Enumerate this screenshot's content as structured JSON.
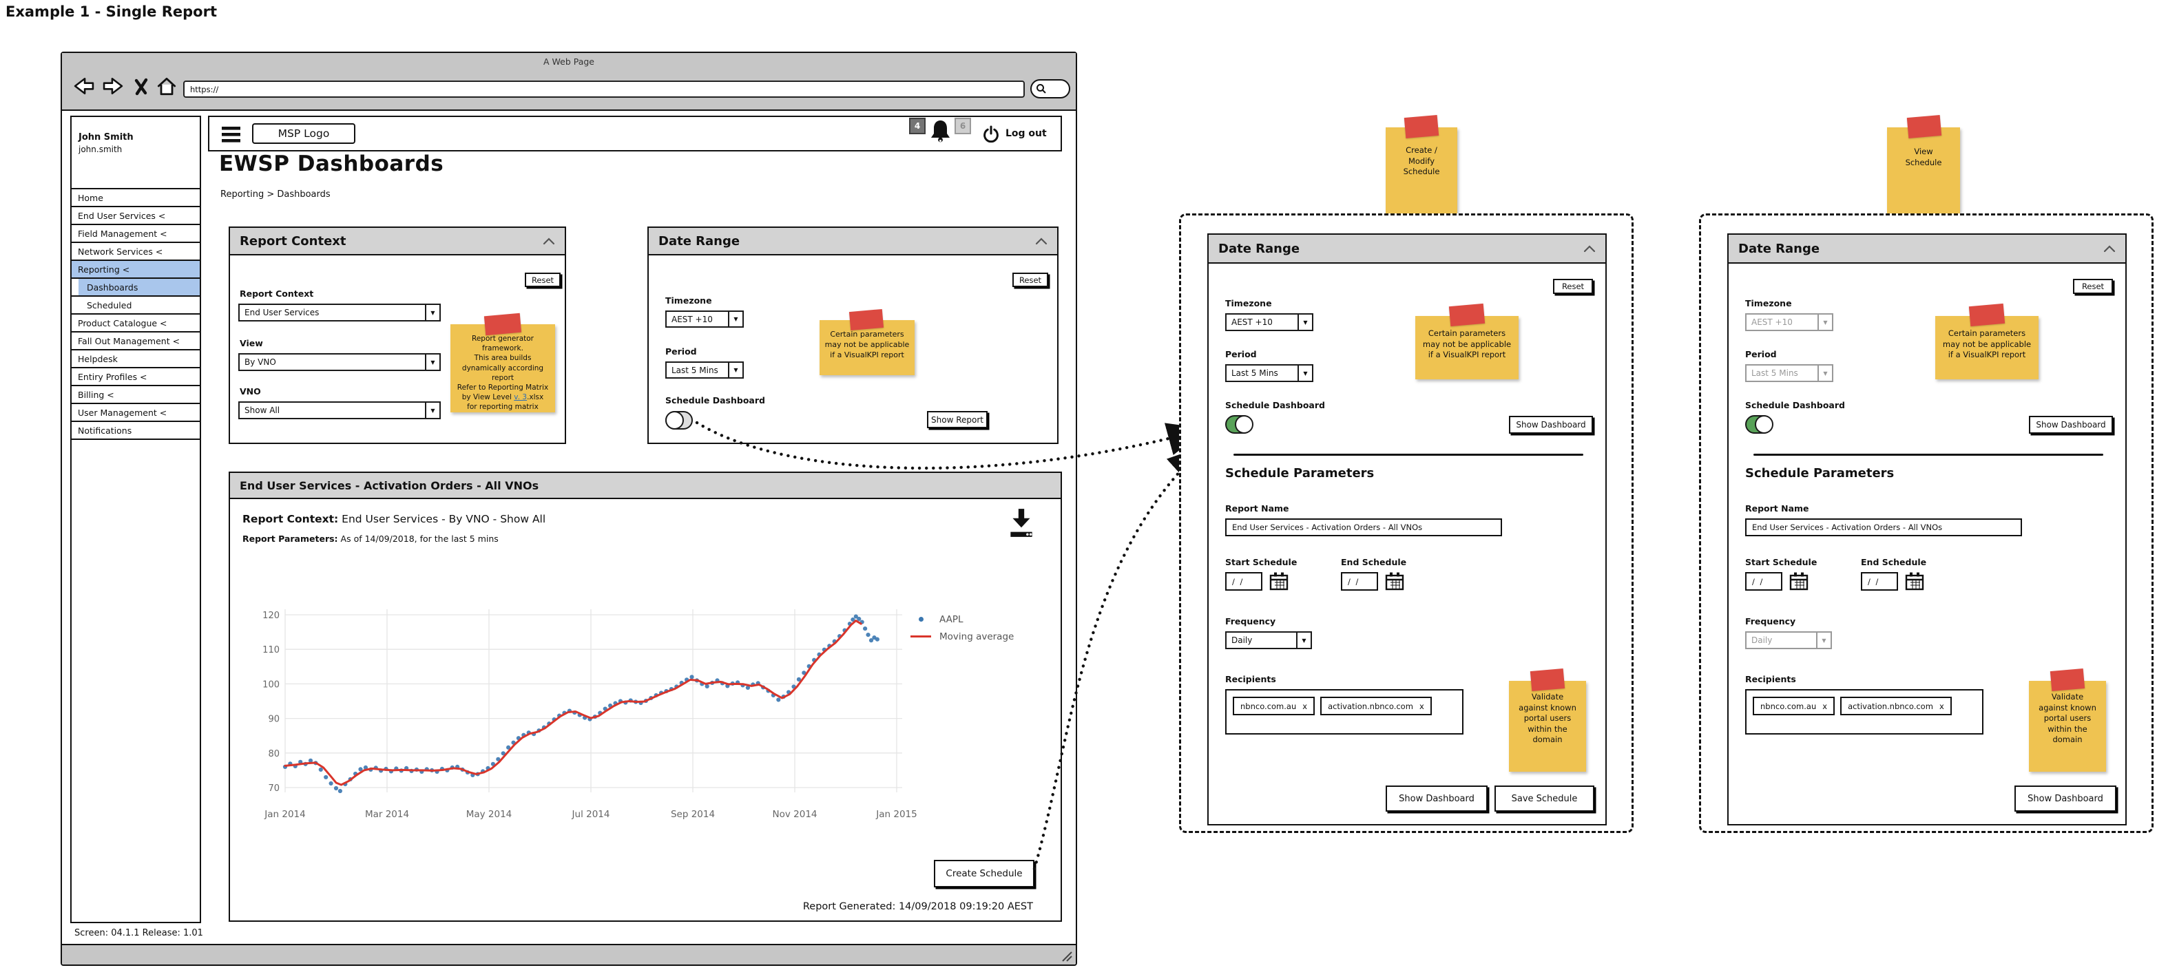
{
  "example_label": "Example 1 - Single Report",
  "browser": {
    "window_title": "A Web Page",
    "url": "https://"
  },
  "app": {
    "logo": "MSP Logo",
    "badge_dark": "4",
    "badge_light": "6",
    "logout_label": "Log out",
    "user_name": "John Smith",
    "user_handle": "john.smith",
    "page_title": "EWSP Dashboards",
    "breadcrumb": "Reporting > Dashboards",
    "screen_info": "Screen: 04.1.1  Release: 1.01"
  },
  "sidebar": {
    "items": [
      {
        "label": "Home"
      },
      {
        "label": "End User Services <"
      },
      {
        "label": "Field Management <"
      },
      {
        "label": "Network Services <"
      },
      {
        "label": "Reporting <"
      },
      {
        "label": "Dashboards"
      },
      {
        "label": "Scheduled"
      },
      {
        "label": "Product Catalogue <"
      },
      {
        "label": "Fall Out Management <"
      },
      {
        "label": "Helpdesk"
      },
      {
        "label": "Entiry Profiles <"
      },
      {
        "label": "Billing <"
      },
      {
        "label": "User Management <"
      },
      {
        "label": "Notifications"
      }
    ]
  },
  "report_context_panel": {
    "title": "Report Context",
    "reset_label": "Reset",
    "context_label": "Report Context",
    "context_value": "End User Services",
    "view_label": "View",
    "view_value": "By VNO",
    "vno_label": "VNO",
    "vno_value": "Show All",
    "note_pre": "Report generator\nframework.\nThis area builds\ndynamically according\nreport\nRefer to Reporting Matrix\nby View Level ",
    "note_link": "v. 3",
    "note_post": ".xlsx\nfor reporting matrix"
  },
  "date_range_panel": {
    "title": "Date Range",
    "reset_label": "Reset",
    "timezone_label": "Timezone",
    "timezone_value": "AEST +10",
    "period_label": "Period",
    "period_value": "Last 5 Mins",
    "schedule_label": "Schedule Dashboard",
    "toggle_on": false,
    "show_report_label": "Show Report",
    "note": "Certain parameters\nmay not be applicable\nif a VisualKPI report"
  },
  "report_panel": {
    "title": "End User Services - Activation Orders - All VNOs",
    "context_label": "Report Context:",
    "context_value": "End User Services - By VNO - Show All",
    "params_label": "Report Parameters:",
    "params_value": "As of 14/09/2018, for the last 5 mins",
    "create_schedule_label": "Create Schedule",
    "generated": "Report Generated: 14/09/2018 09:19:20 AEST"
  },
  "schedule_panels": [
    {
      "sticky_note": "Create /\nModify\nSchedule",
      "date_range": {
        "title": "Date Range",
        "reset_label": "Reset",
        "timezone_label": "Timezone",
        "timezone_value": "AEST +10",
        "timezone_disabled": false,
        "period_label": "Period",
        "period_value": "Last 5 Mins",
        "period_disabled": false,
        "schedule_label": "Schedule Dashboard",
        "toggle_on": true,
        "show_dashboard_label": "Show Dashboard",
        "note": "Certain parameters\nmay not be applicable\nif a VisualKPI report"
      },
      "params": {
        "heading": "Schedule Parameters",
        "report_name_label": "Report Name",
        "report_name_value": "End User Services - Activation Orders - All VNOs",
        "start_label": "Start Schedule",
        "end_label": "End Schedule",
        "date_value": "/ /",
        "frequency_label": "Frequency",
        "frequency_value": "Daily",
        "frequency_disabled": false,
        "recipients_label": "Recipients",
        "recipients": [
          {
            "text": "nbnco.com.au",
            "remove_label": "x"
          },
          {
            "text": "activation.nbnco.com",
            "remove_label": "x"
          }
        ],
        "note": "Validate\nagainst known\nportal users\nwithin the\ndomain",
        "show_dashboard_label": "Show Dashboard",
        "save_schedule_label": "Save Schedule"
      }
    },
    {
      "sticky_note": "View\nSchedule",
      "date_range": {
        "title": "Date Range",
        "reset_label": "Reset",
        "timezone_label": "Timezone",
        "timezone_value": "AEST +10",
        "timezone_disabled": true,
        "period_label": "Period",
        "period_value": "Last 5 Mins",
        "period_disabled": true,
        "schedule_label": "Schedule Dashboard",
        "toggle_on": true,
        "show_dashboard_label": "Show Dashboard",
        "note": "Certain parameters\nmay not be applicable\nif a VisualKPI report"
      },
      "params": {
        "heading": "Schedule Parameters",
        "report_name_label": "Report Name",
        "report_name_value": "End User Services - Activation Orders - All VNOs",
        "start_label": "Start Schedule",
        "end_label": "End Schedule",
        "date_value": "/ /",
        "frequency_label": "Frequency",
        "frequency_value": "Daily",
        "frequency_disabled": true,
        "recipients_label": "Recipients",
        "recipients": [
          {
            "text": "nbnco.com.au",
            "remove_label": "x"
          },
          {
            "text": "activation.nbnco.com",
            "remove_label": "x"
          }
        ],
        "note": "Validate\nagainst known\nportal users\nwithin the\ndomain",
        "show_dashboard_label": "Show Dashboard"
      }
    }
  ],
  "chart_data": {
    "type": "scatter",
    "title": "",
    "xlabel": "",
    "ylabel": "",
    "grid": true,
    "legend_position": "top-right",
    "x_axis": {
      "unit": "months since Jan 2014",
      "tick_positions": [
        0,
        2,
        4,
        6,
        8,
        10,
        12
      ],
      "tick_labels": [
        "Jan 2014",
        "Mar 2014",
        "May 2014",
        "Jul 2014",
        "Sep 2014",
        "Nov 2014",
        "Jan 2015"
      ]
    },
    "y_axis": {
      "ticks": [
        70,
        80,
        90,
        100,
        110,
        120
      ],
      "range": [
        66,
        124
      ]
    },
    "series": [
      {
        "name": "AAPL",
        "type": "scatter",
        "color": "#3a77b0",
        "points": [
          [
            0.0,
            76.0
          ],
          [
            0.1,
            76.9
          ],
          [
            0.2,
            76.2
          ],
          [
            0.3,
            77.4
          ],
          [
            0.4,
            76.8
          ],
          [
            0.5,
            77.8
          ],
          [
            0.6,
            77.1
          ],
          [
            0.7,
            75.2
          ],
          [
            0.8,
            73.0
          ],
          [
            0.9,
            71.2
          ],
          [
            1.0,
            69.8
          ],
          [
            1.08,
            69.0
          ],
          [
            1.18,
            71.0
          ],
          [
            1.28,
            72.4
          ],
          [
            1.38,
            74.0
          ],
          [
            1.48,
            75.3
          ],
          [
            1.58,
            75.8
          ],
          [
            1.68,
            75.2
          ],
          [
            1.78,
            75.7
          ],
          [
            1.88,
            74.9
          ],
          [
            1.98,
            75.4
          ],
          [
            2.08,
            74.7
          ],
          [
            2.18,
            75.5
          ],
          [
            2.28,
            74.9
          ],
          [
            2.38,
            75.6
          ],
          [
            2.48,
            74.8
          ],
          [
            2.58,
            75.2
          ],
          [
            2.68,
            74.6
          ],
          [
            2.78,
            75.3
          ],
          [
            2.88,
            75.0
          ],
          [
            2.98,
            74.6
          ],
          [
            3.08,
            75.4
          ],
          [
            3.18,
            75.0
          ],
          [
            3.28,
            75.8
          ],
          [
            3.38,
            76.0
          ],
          [
            3.48,
            75.2
          ],
          [
            3.58,
            74.4
          ],
          [
            3.68,
            73.6
          ],
          [
            3.78,
            73.9
          ],
          [
            3.88,
            74.7
          ],
          [
            3.98,
            75.6
          ],
          [
            4.08,
            76.8
          ],
          [
            4.18,
            78.2
          ],
          [
            4.28,
            79.9
          ],
          [
            4.38,
            81.6
          ],
          [
            4.48,
            83.0
          ],
          [
            4.58,
            84.3
          ],
          [
            4.68,
            85.2
          ],
          [
            4.78,
            85.9
          ],
          [
            4.88,
            85.5
          ],
          [
            4.98,
            86.5
          ],
          [
            5.08,
            87.4
          ],
          [
            5.18,
            88.5
          ],
          [
            5.28,
            89.7
          ],
          [
            5.38,
            90.8
          ],
          [
            5.48,
            91.6
          ],
          [
            5.58,
            92.2
          ],
          [
            5.68,
            91.7
          ],
          [
            5.78,
            91.0
          ],
          [
            5.88,
            90.2
          ],
          [
            5.98,
            89.8
          ],
          [
            6.08,
            90.5
          ],
          [
            6.18,
            91.6
          ],
          [
            6.28,
            92.8
          ],
          [
            6.38,
            93.7
          ],
          [
            6.48,
            94.4
          ],
          [
            6.58,
            95.0
          ],
          [
            6.68,
            94.6
          ],
          [
            6.78,
            95.2
          ],
          [
            6.88,
            94.8
          ],
          [
            6.98,
            94.5
          ],
          [
            7.08,
            95.1
          ],
          [
            7.18,
            95.9
          ],
          [
            7.28,
            96.7
          ],
          [
            7.38,
            97.4
          ],
          [
            7.48,
            97.9
          ],
          [
            7.58,
            98.5
          ],
          [
            7.68,
            99.2
          ],
          [
            7.78,
            100.3
          ],
          [
            7.88,
            101.2
          ],
          [
            7.98,
            102.0
          ],
          [
            8.08,
            101.0
          ],
          [
            8.18,
            100.0
          ],
          [
            8.28,
            99.3
          ],
          [
            8.38,
            100.3
          ],
          [
            8.48,
            101.0
          ],
          [
            8.58,
            100.2
          ],
          [
            8.68,
            99.4
          ],
          [
            8.78,
            100.1
          ],
          [
            8.88,
            100.4
          ],
          [
            8.98,
            99.6
          ],
          [
            9.08,
            98.9
          ],
          [
            9.18,
            99.8
          ],
          [
            9.28,
            100.2
          ],
          [
            9.38,
            99.0
          ],
          [
            9.48,
            98.0
          ],
          [
            9.58,
            96.7
          ],
          [
            9.68,
            95.4
          ],
          [
            9.78,
            96.3
          ],
          [
            9.88,
            97.6
          ],
          [
            9.98,
            99.2
          ],
          [
            10.08,
            101.3
          ],
          [
            10.18,
            103.2
          ],
          [
            10.28,
            105.1
          ],
          [
            10.38,
            106.9
          ],
          [
            10.48,
            108.5
          ],
          [
            10.58,
            109.9
          ],
          [
            10.68,
            111.0
          ],
          [
            10.78,
            112.3
          ],
          [
            10.88,
            113.8
          ],
          [
            10.98,
            115.5
          ],
          [
            11.08,
            117.4
          ],
          [
            11.14,
            118.6
          ],
          [
            11.2,
            119.5
          ],
          [
            11.26,
            118.8
          ],
          [
            11.32,
            117.9
          ],
          [
            11.38,
            116.0
          ],
          [
            11.44,
            114.2
          ],
          [
            11.5,
            112.6
          ],
          [
            11.56,
            113.4
          ],
          [
            11.62,
            112.9
          ]
        ]
      },
      {
        "name": "Moving average",
        "type": "line",
        "color": "#d9352b",
        "points": [
          [
            0.0,
            76.3
          ],
          [
            0.2,
            76.6
          ],
          [
            0.4,
            77.0
          ],
          [
            0.6,
            77.2
          ],
          [
            0.75,
            75.8
          ],
          [
            0.9,
            73.2
          ],
          [
            1.0,
            71.4
          ],
          [
            1.1,
            70.8
          ],
          [
            1.25,
            71.9
          ],
          [
            1.4,
            73.6
          ],
          [
            1.55,
            75.0
          ],
          [
            1.7,
            75.5
          ],
          [
            1.9,
            75.2
          ],
          [
            2.1,
            75.0
          ],
          [
            2.3,
            75.1
          ],
          [
            2.5,
            75.0
          ],
          [
            2.7,
            75.0
          ],
          [
            2.9,
            74.9
          ],
          [
            3.1,
            75.1
          ],
          [
            3.3,
            75.6
          ],
          [
            3.45,
            75.4
          ],
          [
            3.6,
            74.5
          ],
          [
            3.75,
            73.9
          ],
          [
            3.9,
            74.4
          ],
          [
            4.05,
            75.5
          ],
          [
            4.2,
            77.4
          ],
          [
            4.35,
            79.9
          ],
          [
            4.5,
            82.4
          ],
          [
            4.65,
            84.4
          ],
          [
            4.8,
            85.6
          ],
          [
            4.95,
            86.1
          ],
          [
            5.1,
            87.2
          ],
          [
            5.25,
            88.9
          ],
          [
            5.4,
            90.6
          ],
          [
            5.55,
            91.8
          ],
          [
            5.7,
            92.0
          ],
          [
            5.85,
            91.0
          ],
          [
            6.0,
            90.1
          ],
          [
            6.15,
            90.7
          ],
          [
            6.3,
            92.2
          ],
          [
            6.45,
            93.6
          ],
          [
            6.6,
            94.7
          ],
          [
            6.75,
            95.0
          ],
          [
            6.9,
            94.8
          ],
          [
            7.05,
            94.9
          ],
          [
            7.2,
            95.9
          ],
          [
            7.35,
            96.9
          ],
          [
            7.5,
            97.8
          ],
          [
            7.65,
            98.6
          ],
          [
            7.8,
            99.9
          ],
          [
            7.95,
            101.2
          ],
          [
            8.1,
            101.0
          ],
          [
            8.25,
            100.0
          ],
          [
            8.4,
            100.4
          ],
          [
            8.55,
            100.6
          ],
          [
            8.7,
            99.9
          ],
          [
            8.85,
            100.0
          ],
          [
            9.0,
            99.9
          ],
          [
            9.15,
            99.4
          ],
          [
            9.3,
            99.8
          ],
          [
            9.45,
            98.6
          ],
          [
            9.6,
            97.1
          ],
          [
            9.75,
            95.9
          ],
          [
            9.9,
            97.0
          ],
          [
            10.05,
            99.3
          ],
          [
            10.2,
            102.3
          ],
          [
            10.35,
            105.6
          ],
          [
            10.5,
            108.2
          ],
          [
            10.65,
            110.2
          ],
          [
            10.8,
            111.9
          ],
          [
            10.95,
            114.3
          ],
          [
            11.1,
            117.0
          ],
          [
            11.2,
            118.3
          ],
          [
            11.3,
            117.4
          ]
        ]
      }
    ]
  }
}
